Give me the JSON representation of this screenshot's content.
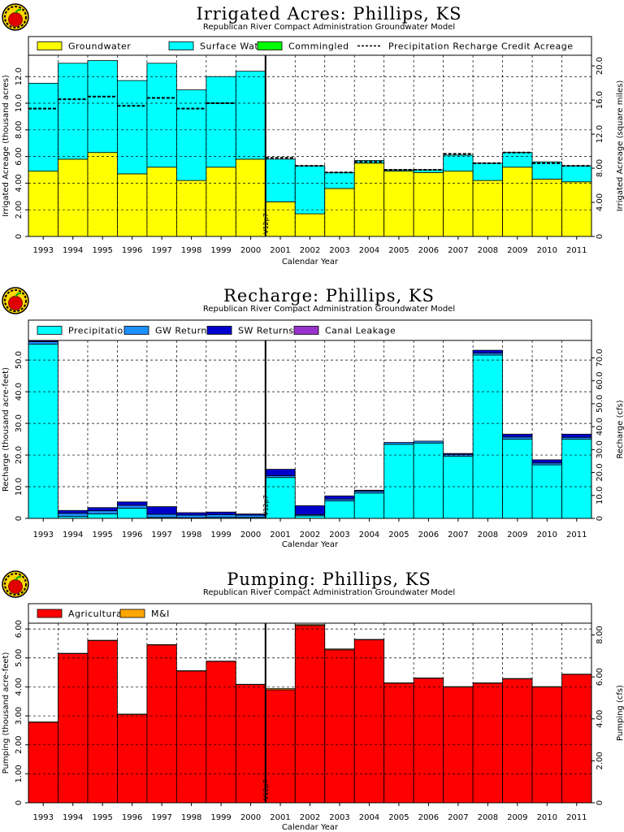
{
  "chart_data": [
    {
      "type": "bar",
      "title": "Irrigated  Acres:  Phillips,  KS",
      "subtitle": "Republican  River  Compact  Administration  Groundwater  Model",
      "xlabel": "Calendar  Year",
      "ylabel": "Irrigated  Acreage  (thousand  acres)",
      "ylabel_right": "Irrigated  Acreage  (square  miles)",
      "ylim": [
        0,
        13.6
      ],
      "yticks": [
        0,
        2,
        4,
        6,
        8,
        10,
        12
      ],
      "yticklabels": [
        "0",
        "2.00",
        "4.00",
        "6.00",
        "8.00",
        "10.0",
        "12.0"
      ],
      "ylim_right": [
        0,
        21.25
      ],
      "yticks_right": [
        0,
        4,
        8,
        12,
        16,
        20
      ],
      "yticklabels_right": [
        "0",
        "4.00",
        "8.00",
        "12.0",
        "16.0",
        "20.0"
      ],
      "grid": true,
      "legend_position": "top",
      "categories": [
        "1993",
        "1994",
        "1995",
        "1996",
        "1997",
        "1998",
        "1999",
        "2000",
        "2001",
        "2002",
        "2003",
        "2004",
        "2005",
        "2006",
        "2007",
        "2008",
        "2009",
        "2010",
        "2011"
      ],
      "series": [
        {
          "name": "Groundwater",
          "color": "#ffff00",
          "values": [
            4.9,
            5.8,
            6.3,
            4.7,
            5.2,
            4.2,
            5.2,
            5.8,
            2.6,
            1.7,
            3.6,
            5.5,
            4.9,
            4.8,
            4.9,
            4.2,
            5.2,
            4.3,
            4.1
          ]
        },
        {
          "name": "Surface  Water",
          "color": "#00ffff",
          "values": [
            6.6,
            7.2,
            6.9,
            7.0,
            7.8,
            6.8,
            6.8,
            6.6,
            3.2,
            3.6,
            1.2,
            0.2,
            0.1,
            0.2,
            1.2,
            1.3,
            1.1,
            1.3,
            1.2
          ]
        },
        {
          "name": "Commingled",
          "color": "#00ff00",
          "values": [
            0,
            0,
            0,
            0,
            0,
            0,
            0,
            0,
            0,
            0,
            0,
            0,
            0,
            0,
            0,
            0,
            0,
            0,
            0
          ]
        }
      ],
      "line_series": {
        "name": "Precipitation  Recharge  Credit  Acreage",
        "style": "dashed",
        "values": [
          9.6,
          10.3,
          10.5,
          9.8,
          10.4,
          9.6,
          10.0,
          null,
          5.9,
          5.3,
          4.8,
          5.6,
          5.0,
          5.0,
          6.2,
          5.5,
          6.3,
          5.5,
          5.3
        ]
      },
      "marker": {
        "label": "V12p7",
        "after_index": 7
      }
    },
    {
      "type": "bar",
      "title": "Recharge:  Phillips,  KS",
      "subtitle": "Republican  River  Compact  Administration  Groundwater  Model",
      "xlabel": "Calendar  Year",
      "ylabel": "Recharge  (thousand  acre-feet)",
      "ylabel_right": "Recharge  (cfs)",
      "ylim": [
        0,
        56.2
      ],
      "yticks": [
        0,
        10,
        20,
        30,
        40,
        50
      ],
      "yticklabels": [
        "0",
        "10.0",
        "20.0",
        "30.0",
        "40.0",
        "50.0"
      ],
      "ylim_right": [
        0,
        77.6
      ],
      "yticks_right": [
        0,
        10,
        20,
        30,
        40,
        50,
        60,
        70
      ],
      "yticklabels_right": [
        "0",
        "10.0",
        "20.0",
        "30.0",
        "40.0",
        "50.0",
        "60.0",
        "70.0"
      ],
      "grid": true,
      "legend_position": "top",
      "categories": [
        "1993",
        "1994",
        "1995",
        "1996",
        "1997",
        "1998",
        "1999",
        "2000",
        "2001",
        "2002",
        "2003",
        "2004",
        "2005",
        "2006",
        "2007",
        "2008",
        "2009",
        "2010",
        "2011"
      ],
      "series": [
        {
          "name": "Precipitation",
          "color": "#00ffff",
          "values": [
            55.0,
            0.6,
            1.4,
            3.2,
            0.3,
            0.2,
            0.3,
            0.3,
            12.9,
            0.8,
            5.5,
            8.0,
            23.4,
            23.8,
            19.6,
            51.6,
            25.0,
            16.9,
            25.0
          ]
        },
        {
          "name": "GW  Returns",
          "color": "#1e90ff",
          "values": [
            0.8,
            1.0,
            1.0,
            0.9,
            1.0,
            0.8,
            0.9,
            0.7,
            0.6,
            0.4,
            0.6,
            0.6,
            0.6,
            0.6,
            0.6,
            0.6,
            0.7,
            0.6,
            0.6
          ]
        },
        {
          "name": "SW  Returns",
          "color": "#0000cd",
          "values": [
            0.3,
            0.9,
            1.0,
            1.1,
            2.4,
            0.8,
            0.8,
            0.4,
            2.0,
            2.8,
            1.0,
            0.3,
            0,
            0,
            0.3,
            0.9,
            0.9,
            1.0,
            1.0
          ]
        },
        {
          "name": "Canal  Leakage",
          "color": "#9932cc",
          "values": [
            0,
            0,
            0,
            0,
            0,
            0,
            0,
            0,
            0,
            0,
            0,
            0,
            0,
            0,
            0,
            0,
            0,
            0,
            0
          ]
        }
      ],
      "marker": {
        "label": "V12p7",
        "after_index": 7
      }
    },
    {
      "type": "bar",
      "title": "Pumping:  Phillips,  KS",
      "subtitle": "Republican  River  Compact  Administration  Groundwater  Model",
      "xlabel": "Calendar  Year",
      "ylabel": "Pumping  (thousand  acre-feet)",
      "ylabel_right": "Pumping  (cfs)",
      "ylim": [
        0,
        6.2
      ],
      "yticks": [
        0,
        1,
        2,
        3,
        4,
        5,
        6
      ],
      "yticklabels": [
        "0",
        "1.00",
        "2.00",
        "3.00",
        "4.00",
        "5.00",
        "6.00"
      ],
      "ylim_right": [
        0,
        8.56
      ],
      "yticks_right": [
        0,
        2,
        4,
        6,
        8
      ],
      "yticklabels_right": [
        "0",
        "2.00",
        "4.00",
        "6.00",
        "8.00"
      ],
      "grid": true,
      "legend_position": "top",
      "categories": [
        "1993",
        "1994",
        "1995",
        "1996",
        "1997",
        "1998",
        "1999",
        "2000",
        "2001",
        "2002",
        "2003",
        "2004",
        "2005",
        "2006",
        "2007",
        "2008",
        "2009",
        "2010",
        "2011"
      ],
      "series": [
        {
          "name": "Agricultural",
          "color": "#ff0000",
          "values": [
            2.78,
            5.15,
            5.6,
            3.05,
            5.45,
            4.55,
            4.88,
            4.08,
            3.9,
            6.12,
            5.28,
            5.63,
            4.13,
            4.3,
            4.0,
            4.13,
            4.28,
            4.0,
            4.43
          ]
        },
        {
          "name": "M&I",
          "color": "#ffa500",
          "values": [
            0.01,
            0.01,
            0.01,
            0.01,
            0.01,
            0.01,
            0.01,
            0.01,
            0.04,
            0.03,
            0.03,
            0.01,
            0.01,
            0.01,
            0.01,
            0.01,
            0.01,
            0.01,
            0.01
          ]
        }
      ],
      "marker": {
        "label": "V12p7",
        "after_index": 7
      }
    }
  ]
}
